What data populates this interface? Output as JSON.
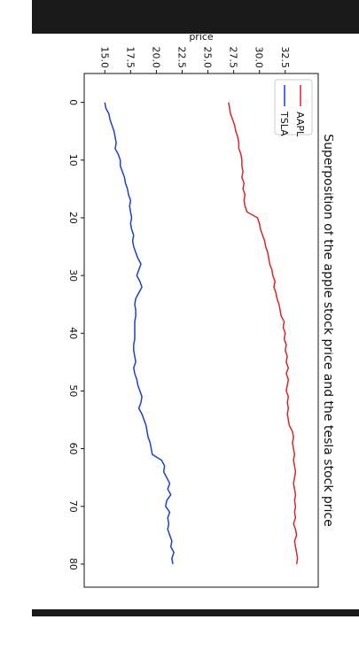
{
  "colors": {
    "aapl": "#d62728",
    "tsla": "#1f3fd1",
    "frame": "#1a1a1a"
  },
  "chart_data": {
    "type": "line",
    "orientation": "rotated-90-clockwise",
    "title": "Superposition of the apple stock price and the tesla stock price",
    "xlabel": "",
    "ylabel": "price",
    "xlim": [
      -5,
      84
    ],
    "ylim": [
      13.0,
      35.7
    ],
    "x_ticks": [
      0,
      10,
      20,
      30,
      40,
      50,
      60,
      70,
      80
    ],
    "y_ticks": [
      "15.0",
      "17.5",
      "20.0",
      "22.5",
      "25.0",
      "27.5",
      "30.0",
      "32.5"
    ],
    "grid": false,
    "legend_position": "top-left",
    "series": [
      {
        "name": "AAPL",
        "x": [
          0,
          1,
          2,
          3,
          4,
          5,
          6,
          7,
          8,
          9,
          10,
          11,
          12,
          13,
          14,
          15,
          16,
          17,
          18,
          19,
          20,
          21,
          22,
          23,
          24,
          25,
          26,
          27,
          28,
          29,
          30,
          31,
          32,
          33,
          34,
          35,
          36,
          37,
          38,
          39,
          40,
          41,
          42,
          43,
          44,
          45,
          46,
          47,
          48,
          49,
          50,
          51,
          52,
          53,
          54,
          55,
          56,
          57,
          58,
          59,
          60,
          61,
          62,
          63,
          64,
          65,
          66,
          67,
          68,
          69,
          70,
          71,
          72,
          73,
          74,
          75,
          76,
          77,
          78,
          79,
          80
        ],
        "values": [
          27.0,
          27.1,
          27.2,
          27.4,
          27.6,
          27.7,
          27.9,
          28.0,
          28.0,
          28.2,
          28.3,
          28.3,
          28.4,
          28.3,
          28.5,
          28.4,
          28.6,
          28.5,
          28.6,
          28.8,
          29.8,
          30.0,
          30.1,
          30.3,
          30.5,
          30.6,
          30.8,
          30.9,
          31.0,
          31.2,
          31.3,
          31.5,
          31.4,
          31.6,
          31.7,
          31.9,
          32.0,
          32.1,
          32.4,
          32.3,
          32.5,
          32.4,
          32.6,
          32.5,
          32.7,
          32.6,
          32.8,
          32.6,
          32.8,
          32.7,
          32.6,
          32.8,
          32.7,
          32.8,
          32.7,
          32.8,
          32.9,
          33.2,
          33.3,
          33.2,
          33.3,
          33.4,
          33.3,
          33.4,
          33.5,
          33.4,
          33.3,
          33.4,
          33.5,
          33.4,
          33.5,
          33.4,
          33.5,
          33.3,
          33.5,
          33.6,
          33.4,
          33.5,
          33.6,
          33.7,
          33.6
        ]
      },
      {
        "name": "TSLA",
        "x": [
          0,
          1,
          2,
          3,
          4,
          5,
          6,
          7,
          8,
          9,
          10,
          11,
          12,
          13,
          14,
          15,
          16,
          17,
          18,
          19,
          20,
          21,
          22,
          23,
          24,
          25,
          26,
          27,
          28,
          29,
          30,
          31,
          32,
          33,
          34,
          35,
          36,
          37,
          38,
          39,
          40,
          41,
          42,
          43,
          44,
          45,
          46,
          47,
          48,
          49,
          50,
          51,
          52,
          53,
          54,
          55,
          56,
          57,
          58,
          59,
          60,
          61,
          62,
          63,
          64,
          65,
          66,
          67,
          68,
          69,
          70,
          71,
          72,
          73,
          74,
          75,
          76,
          77,
          78,
          79,
          80
        ],
        "values": [
          15.0,
          15.1,
          15.4,
          15.5,
          15.7,
          15.9,
          16.0,
          16.1,
          16.0,
          16.3,
          16.5,
          16.5,
          16.7,
          16.9,
          17.0,
          17.2,
          17.3,
          17.5,
          17.4,
          17.5,
          17.6,
          17.5,
          17.6,
          17.8,
          17.7,
          17.8,
          18.0,
          18.2,
          18.5,
          18.3,
          18.1,
          18.4,
          18.6,
          18.3,
          18.0,
          17.9,
          18.0,
          18.0,
          17.9,
          17.9,
          17.9,
          17.9,
          17.8,
          17.8,
          17.9,
          18.0,
          17.8,
          17.9,
          18.1,
          18.2,
          18.4,
          18.6,
          18.5,
          18.3,
          18.6,
          18.8,
          19.0,
          19.1,
          19.2,
          19.4,
          19.5,
          19.6,
          20.5,
          20.8,
          20.7,
          21.0,
          21.3,
          21.1,
          21.4,
          21.0,
          20.9,
          21.3,
          21.1,
          21.2,
          21.1,
          21.3,
          21.5,
          21.4,
          21.7,
          21.5,
          21.6
        ]
      }
    ]
  }
}
